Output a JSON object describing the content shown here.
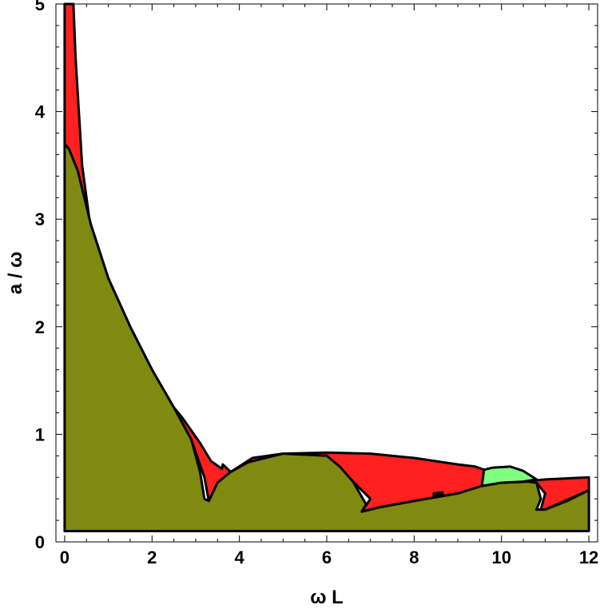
{
  "chart_data": {
    "type": "area",
    "xlabel": "ω L",
    "ylabel": "a / ω",
    "xlim": [
      -0.2,
      12.2
    ],
    "ylim": [
      0,
      5
    ],
    "x_ticks": [
      "0",
      "2",
      "4",
      "6",
      "8",
      "10",
      "12"
    ],
    "y_ticks": [
      "0",
      "1",
      "2",
      "3",
      "4",
      "5"
    ],
    "grid": false,
    "colors": {
      "red_region": "#ff2020",
      "olive_region": "#808a10",
      "green_region": "#80ff80",
      "outline": "#000000"
    },
    "regions": [
      {
        "color": "red",
        "outline": [
          [
            0.0,
            5.0
          ],
          [
            0.2,
            5.0
          ],
          [
            0.25,
            4.5
          ],
          [
            0.4,
            3.5
          ],
          [
            0.6,
            2.9
          ],
          [
            0.8,
            2.55
          ],
          [
            1.0,
            2.3
          ],
          [
            1.2,
            2.1
          ],
          [
            1.5,
            1.83
          ],
          [
            1.8,
            1.6
          ],
          [
            2.2,
            1.4
          ],
          [
            2.7,
            1.15
          ],
          [
            3.1,
            0.92
          ],
          [
            3.35,
            0.75
          ],
          [
            3.6,
            0.68
          ],
          [
            3.62,
            0.72
          ],
          [
            3.8,
            0.65
          ],
          [
            4.3,
            0.78
          ],
          [
            5.0,
            0.82
          ],
          [
            6.0,
            0.83
          ],
          [
            7.0,
            0.82
          ],
          [
            8.0,
            0.78
          ],
          [
            9.0,
            0.72
          ],
          [
            9.4,
            0.7
          ],
          [
            9.6,
            0.67
          ],
          [
            9.55,
            0.52
          ],
          [
            10.5,
            0.56
          ],
          [
            11.0,
            0.58
          ],
          [
            12.0,
            0.6
          ],
          [
            12.0,
            0.48
          ],
          [
            11.0,
            0.3
          ],
          [
            10.9,
            0.3
          ],
          [
            11.0,
            0.45
          ],
          [
            10.8,
            0.55
          ],
          [
            10.0,
            0.5
          ],
          [
            9.0,
            0.45
          ],
          [
            8.0,
            0.38
          ],
          [
            7.2,
            0.32
          ],
          [
            6.8,
            0.28
          ],
          [
            7.0,
            0.4
          ],
          [
            6.6,
            0.56
          ],
          [
            6.0,
            0.8
          ],
          [
            5.0,
            0.82
          ],
          [
            4.2,
            0.74
          ],
          [
            3.8,
            0.65
          ],
          [
            3.5,
            0.55
          ],
          [
            3.3,
            0.38
          ],
          [
            3.2,
            0.6
          ],
          [
            2.9,
            0.95
          ],
          [
            2.5,
            1.25
          ],
          [
            2.0,
            1.6
          ],
          [
            1.5,
            2.0
          ],
          [
            1.0,
            2.45
          ],
          [
            0.6,
            2.95
          ],
          [
            0.3,
            3.45
          ],
          [
            0.1,
            3.65
          ],
          [
            0.0,
            3.7
          ]
        ]
      },
      {
        "color": "olive",
        "outline": [
          [
            0.0,
            0.1
          ],
          [
            0.0,
            3.7
          ],
          [
            0.1,
            3.65
          ],
          [
            0.3,
            3.45
          ],
          [
            0.6,
            2.95
          ],
          [
            1.0,
            2.45
          ],
          [
            1.5,
            2.0
          ],
          [
            2.0,
            1.6
          ],
          [
            2.5,
            1.25
          ],
          [
            2.9,
            0.95
          ],
          [
            3.1,
            0.65
          ],
          [
            3.2,
            0.4
          ],
          [
            3.3,
            0.38
          ],
          [
            3.5,
            0.55
          ],
          [
            3.8,
            0.65
          ],
          [
            4.2,
            0.74
          ],
          [
            5.0,
            0.82
          ],
          [
            6.0,
            0.8
          ],
          [
            6.3,
            0.7
          ],
          [
            6.6,
            0.56
          ],
          [
            6.9,
            0.35
          ],
          [
            6.8,
            0.28
          ],
          [
            7.2,
            0.32
          ],
          [
            8.0,
            0.38
          ],
          [
            9.0,
            0.45
          ],
          [
            9.55,
            0.52
          ],
          [
            10.0,
            0.55
          ],
          [
            10.6,
            0.56
          ],
          [
            10.8,
            0.55
          ],
          [
            10.9,
            0.4
          ],
          [
            10.8,
            0.3
          ],
          [
            10.9,
            0.3
          ],
          [
            11.0,
            0.3
          ],
          [
            11.5,
            0.38
          ],
          [
            12.0,
            0.48
          ],
          [
            12.0,
            0.1
          ]
        ]
      },
      {
        "color": "green",
        "outline": [
          [
            9.6,
            0.67
          ],
          [
            9.8,
            0.69
          ],
          [
            10.2,
            0.7
          ],
          [
            10.5,
            0.66
          ],
          [
            10.8,
            0.58
          ],
          [
            10.5,
            0.56
          ],
          [
            10.0,
            0.55
          ],
          [
            9.55,
            0.52
          ]
        ]
      },
      {
        "color": "black",
        "outline": [
          [
            8.45,
            0.45
          ],
          [
            8.65,
            0.46
          ],
          [
            8.65,
            0.44
          ],
          [
            8.45,
            0.43
          ]
        ]
      }
    ]
  }
}
